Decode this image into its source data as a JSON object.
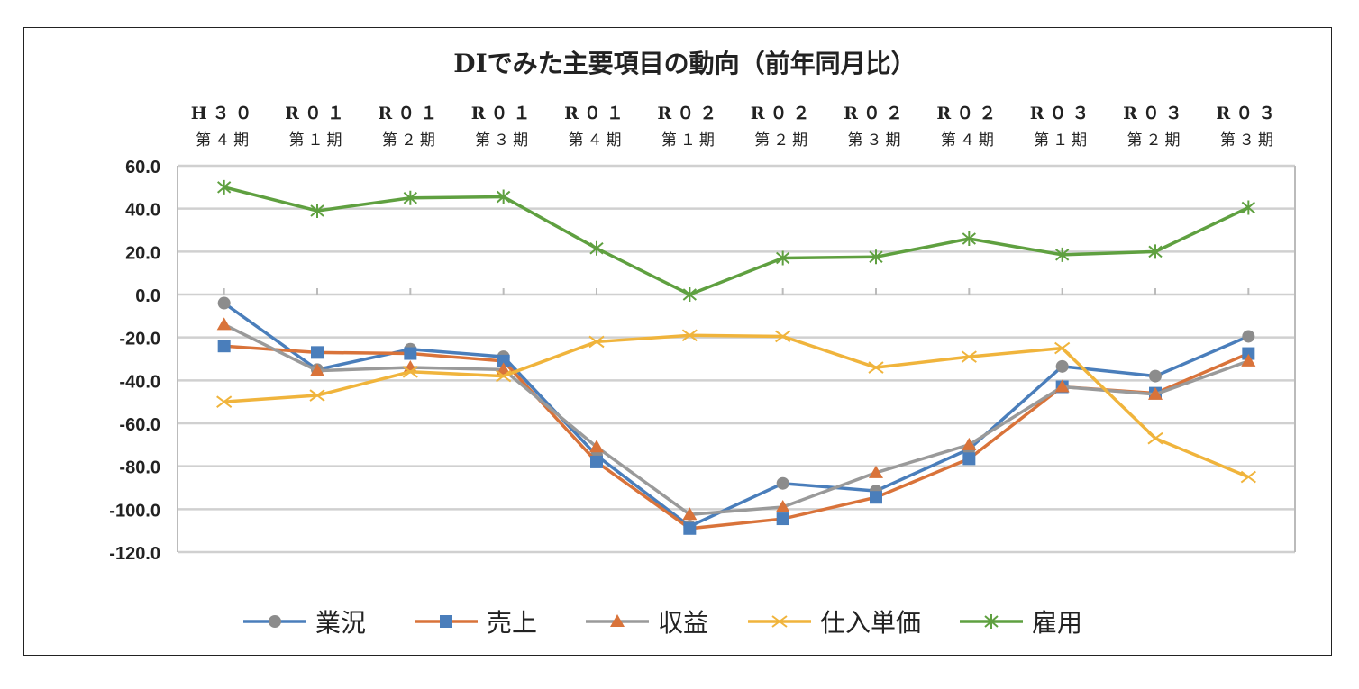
{
  "chart_data": {
    "type": "line",
    "title": "DIでみた主要項目の動向（前年同月比）",
    "categories_top": [
      "H３０",
      "R０１",
      "R０１",
      "R０１",
      "R０１",
      "R０２",
      "R０２",
      "R０２",
      "R０２",
      "R０３",
      "R０３",
      "R０３"
    ],
    "categories_bottom": [
      "第４期",
      "第１期",
      "第２期",
      "第３期",
      "第４期",
      "第１期",
      "第２期",
      "第３期",
      "第４期",
      "第１期",
      "第２期",
      "第３期"
    ],
    "ylim": [
      -120,
      60
    ],
    "yticks": [
      "60.0",
      "40.0",
      "20.0",
      "0.0",
      "-20.0",
      "-40.0",
      "-60.0",
      "-80.0",
      "-100.0",
      "-120.0"
    ],
    "legend_position": "bottom",
    "grid": true,
    "series": [
      {
        "name": "業況",
        "line_color": "#4a7ebb",
        "marker": "circle",
        "marker_color": "#8c8c8c",
        "values": [
          -4,
          -35,
          -25.5,
          -29,
          -75,
          -108,
          -88,
          -91.5,
          -72,
          -33.5,
          -38,
          -19.5
        ]
      },
      {
        "name": "売上",
        "line_color": "#d9733a",
        "marker": "square",
        "marker_color": "#4a7ebb",
        "values": [
          -24,
          -27,
          -27.5,
          -31,
          -78,
          -109,
          -104.5,
          -94.5,
          -76.5,
          -43,
          -46,
          -27.5
        ]
      },
      {
        "name": "収益",
        "line_color": "#9a9a9a",
        "marker": "triangle",
        "marker_color": "#d9733a",
        "values": [
          -14,
          -35.5,
          -34,
          -35,
          -71,
          -102.5,
          -99,
          -83,
          -70,
          -43,
          -46.5,
          -31
        ]
      },
      {
        "name": "仕入単価",
        "line_color": "#f0b43c",
        "marker": "x",
        "marker_color": "#f0b43c",
        "values": [
          -50,
          -47,
          -36,
          -38,
          -22,
          -19,
          -19.5,
          -34,
          -29,
          -25,
          -67,
          -85
        ]
      },
      {
        "name": "雇用",
        "line_color": "#5fa040",
        "marker": "star",
        "marker_color": "#5fa040",
        "values": [
          50,
          39,
          45,
          45.5,
          21.5,
          0,
          17,
          17.5,
          26,
          18.5,
          20,
          40.5
        ]
      }
    ]
  }
}
